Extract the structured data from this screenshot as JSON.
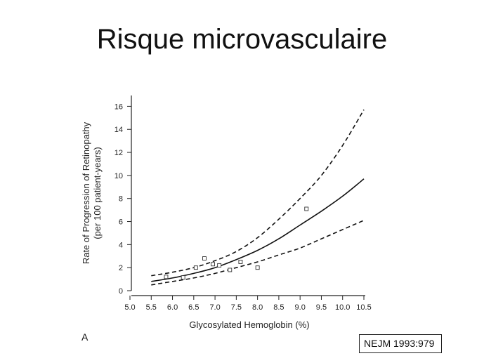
{
  "slide": {
    "title": "Risque microvasculaire",
    "citation": "NEJM 1993:979",
    "panel_label": "A"
  },
  "chart_data": {
    "type": "line",
    "title": "",
    "xlabel": "Glycosylated Hemoglobin (%)",
    "ylabel_line1": "Rate of Progression of Retinopathy",
    "ylabel_line2": "(per 100 patient-years)",
    "xlim": [
      5.0,
      10.5
    ],
    "ylim": [
      0,
      17
    ],
    "x_ticks": [
      "5.0",
      "5.5",
      "6.0",
      "6.5",
      "7.0",
      "7.5",
      "8.0",
      "8.5",
      "9.0",
      "9.5",
      "10.0",
      "10.5"
    ],
    "y_ticks": [
      "0",
      "2",
      "4",
      "6",
      "8",
      "10",
      "12",
      "14",
      "16"
    ],
    "grid": false,
    "legend": "none",
    "series": [
      {
        "role": "fit",
        "style": "solid",
        "x": [
          5.5,
          6.0,
          6.5,
          7.0,
          7.5,
          8.0,
          8.5,
          9.0,
          9.5,
          10.0,
          10.5
        ],
        "y": [
          0.8,
          1.1,
          1.5,
          2.0,
          2.7,
          3.5,
          4.5,
          5.7,
          6.9,
          8.2,
          9.7
        ]
      },
      {
        "role": "upper-ci",
        "style": "dashed",
        "x": [
          5.5,
          6.0,
          6.5,
          7.0,
          7.5,
          8.0,
          8.5,
          9.0,
          9.5,
          10.0,
          10.5
        ],
        "y": [
          1.3,
          1.6,
          2.0,
          2.6,
          3.4,
          4.6,
          6.2,
          8.0,
          10.0,
          12.6,
          15.7
        ]
      },
      {
        "role": "lower-ci",
        "style": "dashed",
        "x": [
          5.5,
          6.0,
          6.5,
          7.0,
          7.5,
          8.0,
          8.5,
          9.0,
          9.5,
          10.0,
          10.5
        ],
        "y": [
          0.5,
          0.8,
          1.1,
          1.5,
          2.0,
          2.5,
          3.1,
          3.7,
          4.5,
          5.3,
          6.1
        ]
      }
    ],
    "points": [
      {
        "x": 5.85,
        "y": 1.2
      },
      {
        "x": 6.25,
        "y": 1.15
      },
      {
        "x": 6.55,
        "y": 2.0
      },
      {
        "x": 6.75,
        "y": 2.8
      },
      {
        "x": 6.95,
        "y": 2.3
      },
      {
        "x": 7.1,
        "y": 2.2
      },
      {
        "x": 7.35,
        "y": 1.8
      },
      {
        "x": 7.6,
        "y": 2.5
      },
      {
        "x": 8.0,
        "y": 2.0
      },
      {
        "x": 9.15,
        "y": 7.1
      }
    ]
  }
}
